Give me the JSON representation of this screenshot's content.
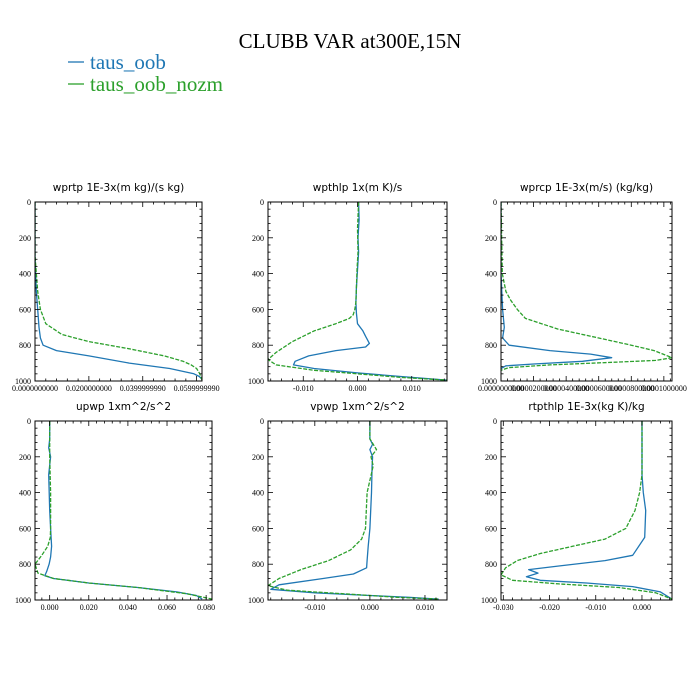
{
  "title": "CLUBB VAR at300E,15N",
  "colors": {
    "taus_oob": "#1f77b4",
    "taus_oob_nozm": "#2ca02c"
  },
  "legend": [
    {
      "name": "taus_oob",
      "color": "#1f77b4",
      "dashed": false
    },
    {
      "name": "taus_oob_nozm",
      "color": "#2ca02c",
      "dashed": true
    }
  ],
  "chart_data": [
    {
      "type": "line",
      "title": "wprtp  1E-3x(m kg)/(s kg)",
      "xlim": [
        0,
        0.062
      ],
      "ylim": [
        1000,
        0
      ],
      "xticks": [
        {
          "v": 0,
          "label": "0.0000000000"
        },
        {
          "v": 0.02,
          "label": "0.0200000000"
        },
        {
          "v": 0.04,
          "label": "0.0399999990"
        },
        {
          "v": 0.06,
          "label": "0.0599999990"
        }
      ],
      "yticks": [
        0,
        200,
        400,
        600,
        800,
        1000
      ],
      "series": [
        {
          "name": "taus_oob",
          "x": [
            0,
            0,
            0.0005,
            0.001,
            0.0015,
            0.002,
            0.003,
            0.008,
            0.02,
            0.035,
            0.05,
            0.056,
            0.059,
            0.061,
            0.062
          ],
          "y": [
            0,
            300,
            500,
            600,
            700,
            760,
            800,
            830,
            860,
            900,
            930,
            950,
            960,
            975,
            990
          ]
        },
        {
          "name": "taus_oob_nozm",
          "x": [
            0,
            0,
            0.001,
            0.002,
            0.004,
            0.01,
            0.02,
            0.035,
            0.048,
            0.055,
            0.058,
            0.06,
            0.0612,
            0.062
          ],
          "y": [
            0,
            300,
            500,
            600,
            680,
            740,
            780,
            820,
            860,
            890,
            910,
            930,
            960,
            995
          ]
        }
      ]
    },
    {
      "type": "line",
      "title": "wpthlp  1x(m K)/s",
      "xlim": [
        -0.0165,
        0.0165
      ],
      "ylim": [
        1000,
        0
      ],
      "xticks": [
        {
          "v": -0.01,
          "label": "-0.010"
        },
        {
          "v": 0,
          "label": "0.000"
        },
        {
          "v": 0.01,
          "label": "0.010"
        }
      ],
      "yticks": [
        0,
        200,
        400,
        600,
        800,
        1000
      ],
      "series": [
        {
          "name": "taus_oob",
          "x": [
            0.0002,
            0.0003,
            0.0001,
            0.0002,
            0.0,
            -0.0002,
            -0.0003,
            -0.0002,
            0.0,
            0.001,
            0.0015,
            0.0022,
            0.0015,
            -0.004,
            -0.009,
            -0.0115,
            -0.0118,
            -0.008,
            0.0,
            0.008,
            0.0165
          ],
          "y": [
            0,
            100,
            200,
            280,
            380,
            480,
            560,
            620,
            680,
            720,
            750,
            790,
            810,
            830,
            860,
            890,
            910,
            930,
            955,
            975,
            995
          ]
        },
        {
          "name": "taus_oob_nozm",
          "x": [
            0.0002,
            0.0,
            0.0001,
            -0.0001,
            -0.0002,
            -0.0003,
            -0.0005,
            -0.0008,
            -0.0015,
            -0.004,
            -0.008,
            -0.012,
            -0.015,
            -0.0165,
            -0.015,
            -0.008,
            0.0,
            0.008,
            0.0165
          ],
          "y": [
            0,
            150,
            280,
            380,
            480,
            560,
            600,
            630,
            650,
            680,
            720,
            780,
            840,
            880,
            910,
            940,
            960,
            980,
            995
          ]
        }
      ]
    },
    {
      "type": "line",
      "title": "wprcp  1E-3x(m/s) (kg/kg)",
      "xlim": [
        0,
        0.000105
      ],
      "ylim": [
        1000,
        0
      ],
      "xticks": [
        {
          "v": 0,
          "label": "0.0000000000"
        },
        {
          "v": 2e-05,
          "label": "0.0000200000"
        },
        {
          "v": 4e-05,
          "label": "0.0000400000"
        },
        {
          "v": 6e-05,
          "label": "0.0000600000"
        },
        {
          "v": 8e-05,
          "label": "0.0000800000"
        },
        {
          "v": 0.0001,
          "label": "0.0001000000"
        }
      ],
      "yticks": [
        0,
        200,
        400,
        600,
        800,
        1000
      ],
      "series": [
        {
          "name": "taus_oob",
          "x": [
            0,
            0,
            1e-06,
            2e-06,
            1e-06,
            5e-06,
            3e-05,
            5.5e-05,
            6.8e-05,
            5e-05,
            2e-05,
            3e-06,
            0
          ],
          "y": [
            0,
            400,
            600,
            700,
            760,
            800,
            830,
            850,
            870,
            890,
            905,
            915,
            930
          ]
        },
        {
          "name": "taus_oob_nozm",
          "x": [
            0,
            8e-07,
            3e-06,
            6e-06,
            1e-05,
            1.5e-05,
            3.5e-05,
            6e-05,
            8e-05,
            9.4e-05,
            0.000105,
            9.5e-05,
            7e-05,
            3e-05,
            5e-06,
            1.5e-06,
            0
          ],
          "y": [
            0,
            400,
            500,
            550,
            600,
            650,
            710,
            760,
            800,
            830,
            870,
            885,
            895,
            910,
            925,
            935,
            940
          ]
        }
      ]
    },
    {
      "type": "line",
      "title": "upwp  1xm^2/s^2",
      "xlim": [
        -0.0075,
        0.083
      ],
      "ylim": [
        1000,
        0
      ],
      "xticks": [
        {
          "v": 0,
          "label": "0.000"
        },
        {
          "v": 0.02,
          "label": "0.020"
        },
        {
          "v": 0.04,
          "label": "0.040"
        },
        {
          "v": 0.06,
          "label": "0.060"
        },
        {
          "v": 0.08,
          "label": "0.080"
        }
      ],
      "yticks": [
        0,
        200,
        400,
        600,
        800,
        1000
      ],
      "series": [
        {
          "name": "taus_oob",
          "x": [
            0.0,
            0.0,
            -0.0005,
            0.0005,
            -0.0005,
            0.0,
            0.0005,
            0.001,
            0.0005,
            -0.0003,
            -0.0015,
            -0.0025,
            0.002,
            0.02,
            0.045,
            0.065,
            0.075,
            0.078
          ],
          "y": [
            0,
            100,
            150,
            200,
            300,
            500,
            600,
            700,
            760,
            800,
            840,
            865,
            880,
            905,
            930,
            955,
            975,
            995
          ]
        },
        {
          "name": "taus_oob_nozm",
          "x": [
            0.0,
            0.0,
            0.0005,
            0.0005,
            0.0003,
            -0.001,
            -0.004,
            -0.0075,
            -0.006,
            0.002,
            0.02,
            0.045,
            0.07,
            0.083
          ],
          "y": [
            0,
            200,
            400,
            600,
            650,
            700,
            750,
            800,
            850,
            880,
            905,
            930,
            965,
            995
          ]
        }
      ]
    },
    {
      "type": "line",
      "title": "vpwp  1xm^2/s^2",
      "xlim": [
        -0.0185,
        0.014
      ],
      "ylim": [
        1000,
        0
      ],
      "xticks": [
        {
          "v": -0.01,
          "label": "-0.010"
        },
        {
          "v": 0,
          "label": "0.000"
        },
        {
          "v": 0.01,
          "label": "0.010"
        }
      ],
      "yticks": [
        0,
        200,
        400,
        600,
        800,
        1000
      ],
      "series": [
        {
          "name": "taus_oob",
          "x": [
            0.0,
            0.0,
            0.0005,
            0.0,
            0.0005,
            0.0004,
            0.0003,
            0.0,
            -0.0003,
            -0.0005,
            -0.0006,
            -0.003,
            -0.0085,
            -0.0165,
            -0.018,
            -0.01,
            0.0,
            0.007,
            0.0125
          ],
          "y": [
            0,
            100,
            130,
            160,
            200,
            250,
            400,
            600,
            700,
            780,
            820,
            855,
            880,
            915,
            940,
            960,
            975,
            985,
            995
          ]
        },
        {
          "name": "taus_oob_nozm",
          "x": [
            0.0,
            0.0,
            0.0012,
            0.0002,
            0.0006,
            -0.0005,
            -0.0008,
            -0.0015,
            -0.0035,
            -0.0075,
            -0.0125,
            -0.0165,
            -0.0185,
            -0.015,
            -0.005,
            0.005,
            0.0125
          ],
          "y": [
            0,
            100,
            160,
            200,
            250,
            400,
            600,
            660,
            720,
            780,
            830,
            880,
            920,
            945,
            965,
            985,
            995
          ]
        }
      ]
    },
    {
      "type": "line",
      "title": "rtpthlp  1E-3x(kg K)/kg",
      "xlim": [
        -0.0305,
        0.0065
      ],
      "ylim": [
        1000,
        0
      ],
      "xticks": [
        {
          "v": -0.03,
          "label": "-0.030"
        },
        {
          "v": -0.02,
          "label": "-0.020"
        },
        {
          "v": -0.01,
          "label": "-0.010"
        },
        {
          "v": 0,
          "label": "0.000"
        }
      ],
      "yticks": [
        0,
        200,
        400,
        600,
        800,
        1000
      ],
      "series": [
        {
          "name": "taus_oob",
          "x": [
            0.0,
            0.0,
            0.0003,
            0.0008,
            0.0006,
            -0.002,
            -0.008,
            -0.018,
            -0.0245,
            -0.0225,
            -0.025,
            -0.022,
            -0.012,
            -0.002,
            0.004,
            0.0065
          ],
          "y": [
            0,
            300,
            400,
            500,
            650,
            750,
            780,
            810,
            830,
            850,
            870,
            890,
            905,
            925,
            955,
            995
          ]
        },
        {
          "name": "taus_oob_nozm",
          "x": [
            0.0,
            0.0,
            -0.0005,
            -0.0015,
            -0.0035,
            -0.008,
            -0.015,
            -0.022,
            -0.027,
            -0.0295,
            -0.0305,
            -0.028,
            -0.018,
            -0.005,
            0.003,
            0.0065
          ],
          "y": [
            0,
            300,
            400,
            500,
            600,
            660,
            700,
            740,
            780,
            820,
            860,
            890,
            910,
            930,
            960,
            995
          ]
        }
      ]
    }
  ]
}
